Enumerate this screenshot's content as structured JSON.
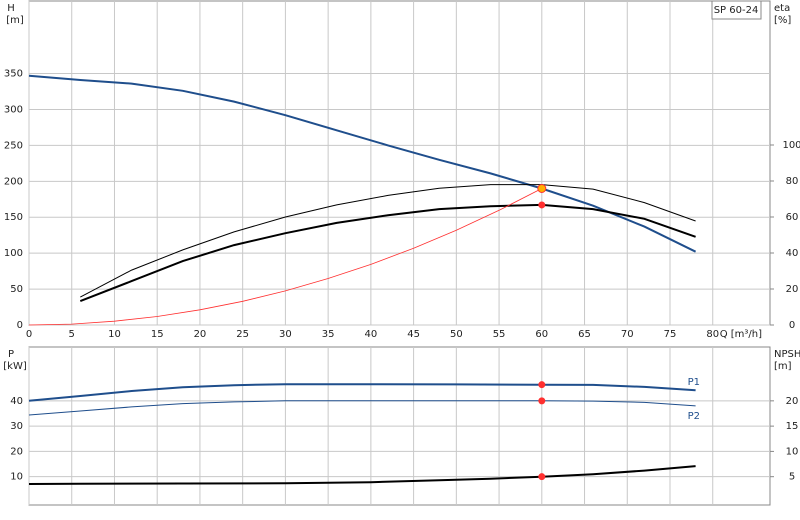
{
  "chart_data": [
    {
      "type": "line",
      "y_label": "H",
      "y_unit": "[m]",
      "y2_label": "eta",
      "y2_unit": "[%]",
      "title": "SP 60-24",
      "x_label": "Q [m³/h]",
      "xlim": [
        0,
        86.7
      ],
      "xticks": [
        0,
        5,
        10,
        15,
        20,
        25,
        30,
        35,
        40,
        45,
        50,
        55,
        60,
        65,
        70,
        75,
        80
      ],
      "xtick_labels": true,
      "ylim": [
        0,
        451
      ],
      "yticks": [
        0,
        50,
        100,
        150,
        200,
        250,
        300,
        350
      ],
      "y2lim": [
        0,
        180
      ],
      "y2ticks": [
        0,
        20,
        40,
        60,
        80,
        100
      ],
      "grid": true,
      "series": [
        {
          "color": "#1f4e8c",
          "line_width": 2,
          "x": [
            0,
            6,
            12,
            18,
            24,
            30,
            36,
            42,
            48,
            54,
            60,
            66,
            72,
            78
          ],
          "values": [
            347,
            341,
            336,
            326,
            311,
            292,
            271,
            250,
            230,
            211,
            190,
            166,
            137,
            102
          ]
        },
        {
          "color": "#000000",
          "line_width": 1,
          "axis": "y2",
          "x": [
            6,
            12,
            18,
            24,
            30,
            36,
            42,
            48,
            54,
            60,
            66,
            72,
            78
          ],
          "values": [
            15.5,
            30.5,
            41.7,
            51.7,
            60,
            66.7,
            72,
            76,
            78,
            78,
            75.5,
            68,
            57.8
          ]
        },
        {
          "color": "#000000",
          "line_width": 2,
          "axis": "y2",
          "x": [
            6,
            12,
            18,
            24,
            30,
            36,
            42,
            48,
            54,
            60,
            66,
            72,
            78
          ],
          "values": [
            13.3,
            24.4,
            35.5,
            44.4,
            51,
            56.7,
            61,
            64.4,
            66,
            66.7,
            64.4,
            59,
            49
          ]
        },
        {
          "color": "#ff3030",
          "line_width": 0.8,
          "x": [
            0,
            5,
            10,
            15,
            20,
            25,
            30,
            35,
            40,
            45,
            50,
            55,
            60
          ],
          "values": [
            0,
            1.3,
            5.3,
            11.9,
            21.1,
            33,
            47.5,
            64.7,
            84.4,
            106.9,
            131.9,
            159.7,
            190
          ]
        },
        {
          "mode": "markers",
          "color": "#ff3030",
          "fill": "#ffb000",
          "x": [
            60
          ],
          "values": [
            190
          ]
        },
        {
          "mode": "markers",
          "color": "#ff3030",
          "axis": "y2",
          "x": [
            60
          ],
          "values": [
            66.7
          ]
        }
      ]
    },
    {
      "type": "line",
      "y_label": "P",
      "y_unit": "[kW]",
      "y2_label": "NPSH",
      "y2_unit": "[m]",
      "xlim": [
        0,
        86.7
      ],
      "xticks": [
        0,
        5,
        10,
        15,
        20,
        25,
        30,
        35,
        40,
        45,
        50,
        55,
        60,
        65,
        70,
        75,
        80
      ],
      "xtick_labels": false,
      "ylim": [
        -1.2,
        61.3
      ],
      "yticks": [
        10,
        20,
        30,
        40
      ],
      "y2lim": [
        -0.6,
        30.65
      ],
      "y2ticks": [
        5,
        10,
        15,
        20
      ],
      "grid": true,
      "series": [
        {
          "name": "P1",
          "color": "#1f4e8c",
          "line_width": 2,
          "x": [
            0,
            6,
            12,
            18,
            24,
            30,
            40,
            50,
            60,
            66,
            72,
            78
          ],
          "values": [
            40,
            41.9,
            43.9,
            45.4,
            46.2,
            46.6,
            46.6,
            46.5,
            46.4,
            46.3,
            45.5,
            44.2
          ]
        },
        {
          "name": "P2",
          "color": "#1f4e8c",
          "line_width": 1,
          "x": [
            0,
            6,
            12,
            18,
            24,
            30,
            40,
            50,
            60,
            66,
            72,
            78
          ],
          "values": [
            34.4,
            36,
            37.6,
            38.9,
            39.6,
            40,
            40,
            40,
            40,
            39.9,
            39.4,
            38
          ]
        },
        {
          "color": "#000000",
          "line_width": 2,
          "axis": "y2",
          "x": [
            0,
            6,
            18,
            30,
            40,
            48,
            54,
            60,
            66,
            72,
            78
          ],
          "values": [
            3.55,
            3.6,
            3.65,
            3.7,
            3.9,
            4.3,
            4.6,
            5,
            5.5,
            6.2,
            7.1
          ]
        },
        {
          "mode": "markers",
          "color": "#ff3030",
          "x": [
            60
          ],
          "values": [
            46.4
          ]
        },
        {
          "mode": "markers",
          "color": "#ff3030",
          "x": [
            60
          ],
          "values": [
            40
          ]
        },
        {
          "mode": "markers",
          "color": "#ff3030",
          "axis": "y2",
          "x": [
            60
          ],
          "values": [
            5
          ]
        }
      ]
    }
  ]
}
